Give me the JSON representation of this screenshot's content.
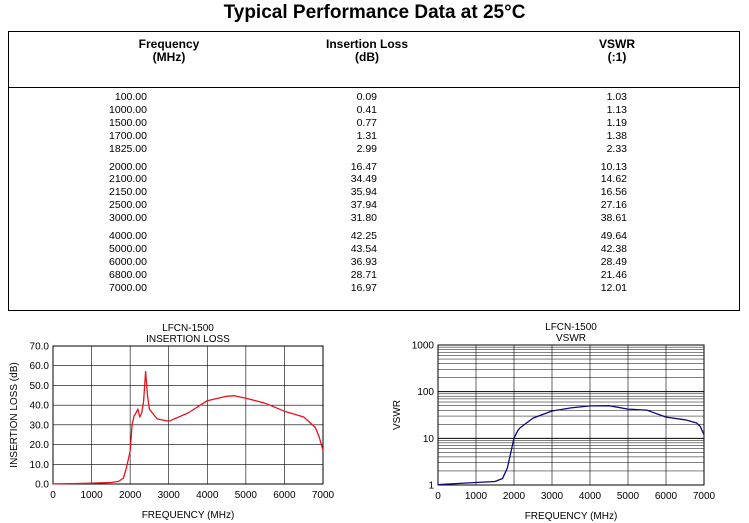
{
  "title": "Typical Performance Data at 25°C",
  "table": {
    "headers": [
      {
        "line1": "Frequency",
        "line2": "(MHz)"
      },
      {
        "line1": "Insertion Loss",
        "line2": "(dB)"
      },
      {
        "line1": "VSWR",
        "line2": "(:1)"
      }
    ],
    "rows": [
      [
        "100.00",
        "0.09",
        "1.03"
      ],
      [
        "1000.00",
        "0.41",
        "1.13"
      ],
      [
        "1500.00",
        "0.77",
        "1.19"
      ],
      [
        "1700.00",
        "1.31",
        "1.38"
      ],
      [
        "1825.00",
        "2.99",
        "2.33"
      ],
      [
        "2000.00",
        "16.47",
        "10.13"
      ],
      [
        "2100.00",
        "34.49",
        "14.62"
      ],
      [
        "2150.00",
        "35.94",
        "16.56"
      ],
      [
        "2500.00",
        "37.94",
        "27.16"
      ],
      [
        "3000.00",
        "31.80",
        "38.61"
      ],
      [
        "4000.00",
        "42.25",
        "49.64"
      ],
      [
        "5000.00",
        "43.54",
        "42.38"
      ],
      [
        "6000.00",
        "36.93",
        "28.49"
      ],
      [
        "6800.00",
        "28.71",
        "21.46"
      ],
      [
        "7000.00",
        "16.97",
        "12.01"
      ]
    ]
  },
  "chart_data": [
    {
      "type": "line",
      "title": "LFCN-1500",
      "subtitle": "INSERTION LOSS",
      "xlabel": "FREQUENCY (MHz)",
      "ylabel": "INSERTION LOSS (dB)",
      "xlim": [
        0,
        7000
      ],
      "ylim": [
        0,
        70
      ],
      "xticks": [
        "0",
        "1000",
        "2000",
        "3000",
        "4000",
        "5000",
        "6000",
        "7000"
      ],
      "yticks": [
        "0.0",
        "10.0",
        "20.0",
        "30.0",
        "40.0",
        "50.0",
        "60.0",
        "70.0"
      ],
      "grid": true,
      "color": "#e8131c",
      "x": [
        0,
        500,
        1000,
        1500,
        1700,
        1825,
        1900,
        2000,
        2050,
        2100,
        2150,
        2200,
        2250,
        2300,
        2350,
        2400,
        2450,
        2500,
        2700,
        3000,
        3500,
        4000,
        4500,
        4700,
        5000,
        5500,
        6000,
        6500,
        6800,
        6900,
        7000
      ],
      "y": [
        0.05,
        0.2,
        0.41,
        0.77,
        1.31,
        2.99,
        8,
        16.47,
        30,
        34.49,
        35.94,
        38,
        34,
        36,
        42,
        57,
        45,
        37.94,
        33,
        31.8,
        36,
        42.25,
        44.5,
        44.8,
        43.54,
        41,
        36.93,
        34,
        28.71,
        24,
        16.97
      ]
    },
    {
      "type": "line",
      "title": "LFCN-1500",
      "subtitle": "VSWR",
      "xlabel": "FREQUENCY (MHz)",
      "ylabel": "VSWR",
      "yscale": "log",
      "xlim": [
        0,
        7000
      ],
      "ylim": [
        1,
        1000
      ],
      "xticks": [
        "0",
        "1000",
        "2000",
        "3000",
        "4000",
        "5000",
        "6000",
        "7000"
      ],
      "yticks": [
        "1",
        "10",
        "100",
        "1000"
      ],
      "grid": true,
      "color": "#0a0a80",
      "x": [
        0,
        100,
        1000,
        1500,
        1700,
        1825,
        2000,
        2100,
        2150,
        2500,
        3000,
        3500,
        4000,
        4500,
        5000,
        5500,
        6000,
        6500,
        6800,
        6900,
        7000
      ],
      "y": [
        1.02,
        1.03,
        1.13,
        1.19,
        1.38,
        2.33,
        10.13,
        14.62,
        16.56,
        27.16,
        38.61,
        45,
        49.64,
        50,
        42.38,
        40,
        28.49,
        25,
        21.46,
        18,
        12.01
      ]
    }
  ]
}
